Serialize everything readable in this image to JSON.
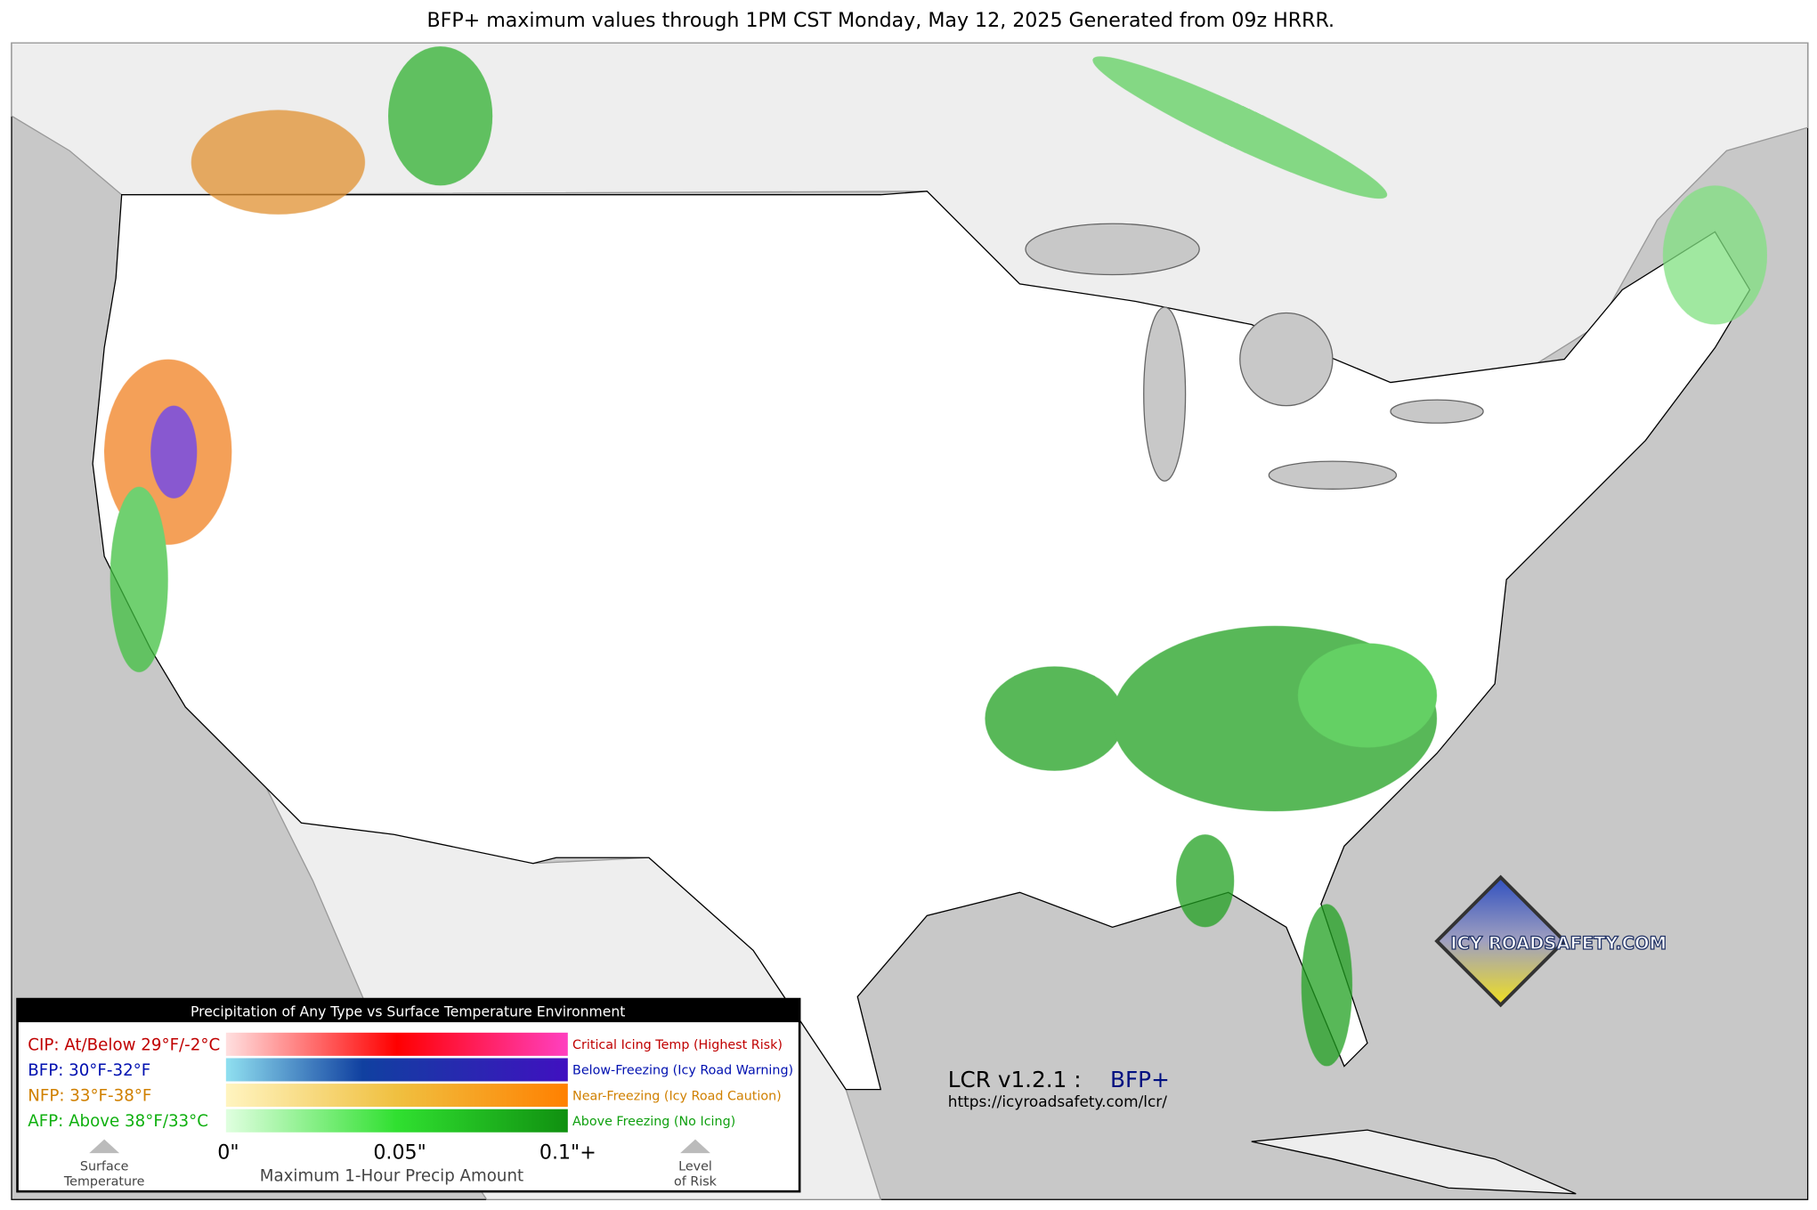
{
  "title": "BFP+ maximum values through 1PM CST Monday, May 12, 2025 Generated from 09z HRRR.",
  "legend": {
    "title": "Precipitation of Any Type vs Surface Temperature Environment",
    "rows": [
      {
        "label": "CIP: At/Below 29°F/-2°C",
        "description": "Critical Icing Temp (Highest Risk)"
      },
      {
        "label": "BFP: 30°F-32°F",
        "description": "Below-Freezing (Icy Road Warning)"
      },
      {
        "label": "NFP: 33°F-38°F",
        "description": "Near-Freezing (Icy Road Caution)"
      },
      {
        "label": "AFP: Above 38°F/33°C",
        "description": "Above Freezing (No Icing)"
      }
    ],
    "scale_ticks": [
      "0\"",
      "0.05\"",
      "0.1\"+"
    ],
    "scale_label": "Maximum 1-Hour Precip Amount",
    "left_caption": [
      "Surface",
      "Temperature"
    ],
    "right_caption": [
      "Level",
      "of Risk"
    ]
  },
  "version": {
    "label": "LCR v1.2.1 :",
    "product": "BFP+",
    "url": "https://icyroadsafety.com/lcr/"
  },
  "logo": "ICY ROADSAFETY.COM"
}
